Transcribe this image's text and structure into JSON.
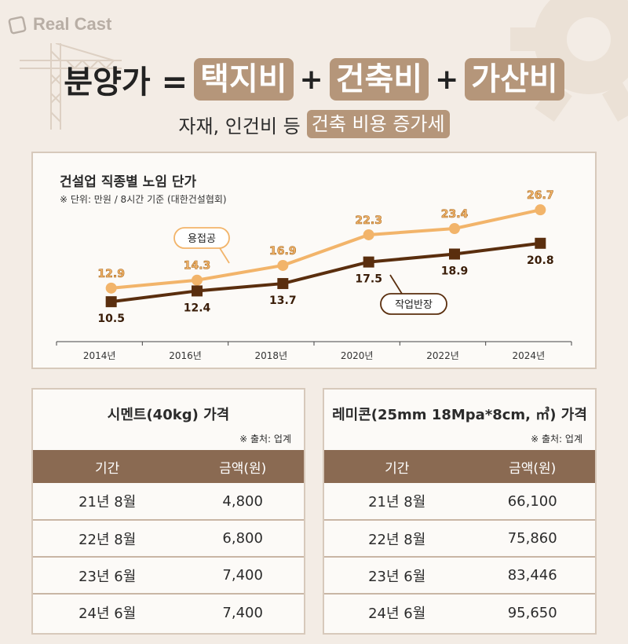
{
  "brand": {
    "logo_text": "Real Cast"
  },
  "headline": {
    "lead": "분양가 =",
    "term1": "택지비",
    "plus1": "+",
    "term2": "건축비",
    "plus2": "+",
    "term3": "가산비"
  },
  "subline": {
    "plain": "자재, 인건비 등",
    "highlight": "건축 비용 증가세"
  },
  "colors": {
    "accent": "#b5967a",
    "header_brown": "#8a6a52",
    "line_light": "#f2b46a",
    "line_dark": "#5a2e0e"
  },
  "chart_data": {
    "type": "line",
    "title": "건설업 직종별 노임 단가",
    "note": "※ 단위: 만원 / 8시간 기준 (대한건설협회)",
    "x": [
      "2014년",
      "2016년",
      "2018년",
      "2020년",
      "2022년",
      "2024년"
    ],
    "series": [
      {
        "name": "용접공",
        "values": [
          12.9,
          14.3,
          16.9,
          22.3,
          23.4,
          26.7
        ],
        "color": "#f2b46a",
        "marker": "circle"
      },
      {
        "name": "작업반장",
        "values": [
          10.5,
          12.4,
          13.7,
          17.5,
          18.9,
          20.8
        ],
        "color": "#5a2e0e",
        "marker": "square"
      }
    ],
    "ylim": [
      9,
      27
    ],
    "grid": false
  },
  "tables": {
    "cement": {
      "title": "시멘트(40kg) 가격",
      "source": "※ 출처: 업계",
      "headers": [
        "기간",
        "금액(원)"
      ],
      "rows": [
        [
          "21년 8월",
          "4,800"
        ],
        [
          "22년 8월",
          "6,800"
        ],
        [
          "23년 6월",
          "7,400"
        ],
        [
          "24년 6월",
          "7,400"
        ]
      ]
    },
    "remicon": {
      "title": "레미콘(25mm 18Mpa*8cm, ㎥) 가격",
      "source": "※ 출처: 업계",
      "headers": [
        "기간",
        "금액(원)"
      ],
      "rows": [
        [
          "21년 8월",
          "66,100"
        ],
        [
          "22년 8월",
          "75,860"
        ],
        [
          "23년 6월",
          "83,446"
        ],
        [
          "24년 6월",
          "95,650"
        ]
      ]
    }
  }
}
